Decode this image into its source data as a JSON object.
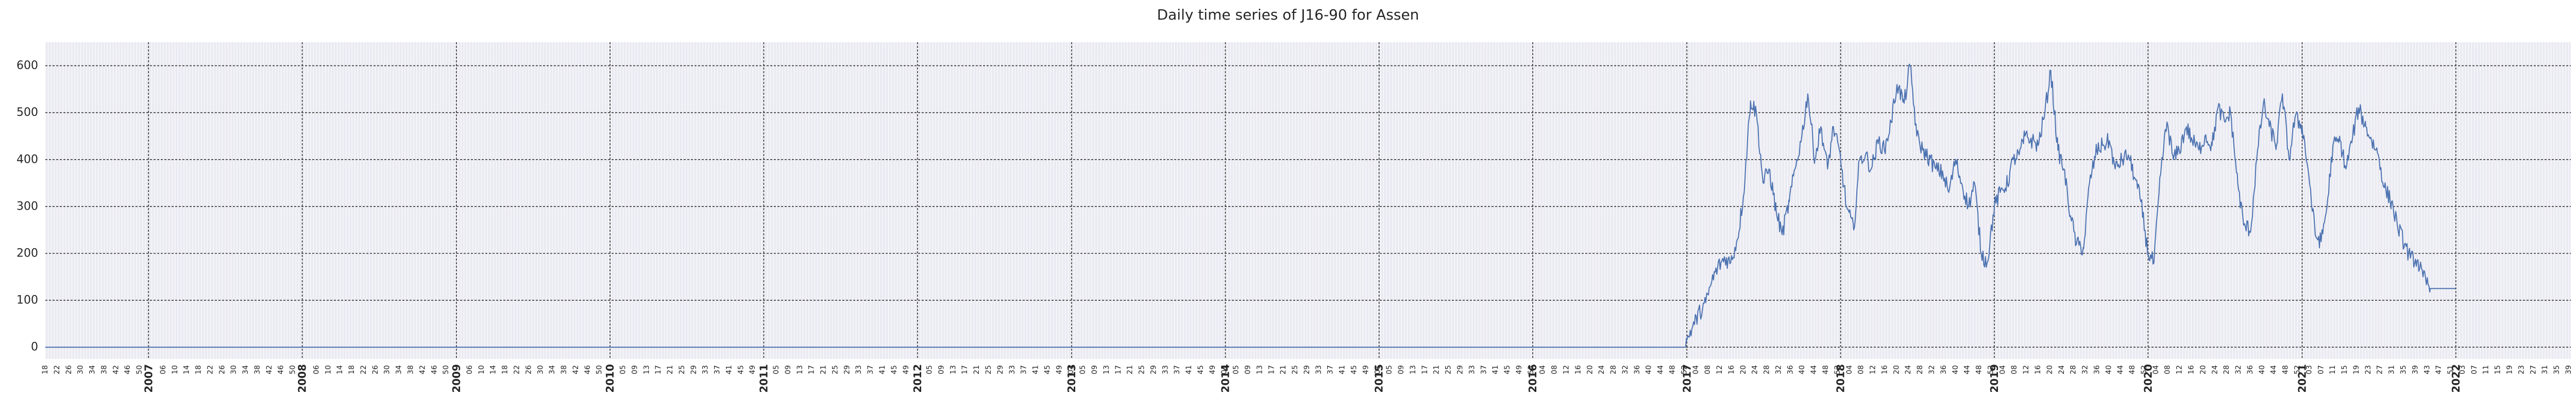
{
  "chart_data": {
    "type": "line",
    "title": "Daily time series of J16-90 for Assen",
    "xlabel": "",
    "ylabel": "",
    "x_range": [
      "2006-05-01",
      "2022-10-01"
    ],
    "ylim": [
      -25,
      650
    ],
    "yticks": [
      0,
      100,
      200,
      300,
      400,
      500,
      600
    ],
    "year_ticks": [
      "2007",
      "2008",
      "2009",
      "2010",
      "2011",
      "2012",
      "2013",
      "2014",
      "2015",
      "2016",
      "2017",
      "2018",
      "2019",
      "2020",
      "2021",
      "2022"
    ],
    "week_ticks": [
      "04",
      "09",
      "13",
      "17",
      "22",
      "26",
      "31",
      "35",
      "39",
      "44",
      "48"
    ],
    "grid": true,
    "legend": "none",
    "colors": {
      "line": "#4c72b0",
      "background": "#eaeaf2",
      "major_grid": "#333333",
      "minor_grid": "#ffffff"
    },
    "series": [
      {
        "x": [
          "2006-05-01",
          "2016-12-25",
          "2017-01-01",
          "2017-01-15",
          "2017-02-01",
          "2017-02-15",
          "2017-03-01",
          "2017-03-15",
          "2017-04-01",
          "2017-04-15",
          "2017-05-01",
          "2017-05-15",
          "2017-06-01",
          "2017-06-15",
          "2017-07-01",
          "2017-07-15",
          "2017-08-01",
          "2017-08-15",
          "2017-09-01",
          "2017-09-15",
          "2017-10-01",
          "2017-10-15",
          "2017-11-01",
          "2017-11-15",
          "2017-12-01",
          "2017-12-15",
          "2018-01-01",
          "2018-01-15",
          "2018-02-01",
          "2018-02-15",
          "2018-03-01",
          "2018-03-15",
          "2018-04-01",
          "2018-04-15",
          "2018-05-01",
          "2018-05-15",
          "2018-06-01",
          "2018-06-15",
          "2018-07-01",
          "2018-07-15",
          "2018-08-01",
          "2018-08-15",
          "2018-09-01",
          "2018-09-15",
          "2018-10-01",
          "2018-10-15",
          "2018-11-01",
          "2018-11-15",
          "2018-12-01",
          "2018-12-15",
          "2019-01-01",
          "2019-01-15",
          "2019-02-01",
          "2019-02-15",
          "2019-03-01",
          "2019-03-15",
          "2019-04-01",
          "2019-04-15",
          "2019-05-01",
          "2019-05-15",
          "2019-06-01",
          "2019-06-15",
          "2019-07-01",
          "2019-07-15",
          "2019-08-01",
          "2019-08-15",
          "2019-09-01",
          "2019-09-15",
          "2019-10-01",
          "2019-10-15",
          "2019-11-01",
          "2019-11-15",
          "2019-12-01",
          "2019-12-15",
          "2020-01-01",
          "2020-01-15",
          "2020-02-01",
          "2020-02-15",
          "2020-03-01",
          "2020-03-15",
          "2020-04-01",
          "2020-04-15",
          "2020-05-01",
          "2020-05-15",
          "2020-06-01",
          "2020-06-15",
          "2020-07-01",
          "2020-07-15",
          "2020-08-01",
          "2020-08-15",
          "2020-09-01",
          "2020-09-15",
          "2020-10-01",
          "2020-10-15",
          "2020-11-01",
          "2020-11-15",
          "2020-12-01",
          "2020-12-15",
          "2021-01-01",
          "2021-01-15",
          "2021-02-01",
          "2021-02-15",
          "2021-03-01",
          "2021-03-15",
          "2021-04-01",
          "2021-04-15",
          "2021-05-01",
          "2021-05-15",
          "2021-06-01",
          "2021-06-15",
          "2021-07-01",
          "2021-07-15",
          "2021-08-01",
          "2021-08-15",
          "2021-09-01",
          "2021-09-15",
          "2021-10-01",
          "2021-10-15",
          "2021-11-01",
          "2021-12-01",
          "2021-12-31"
        ],
        "y": [
          0,
          0,
          15,
          45,
          75,
          95,
          140,
          170,
          190,
          180,
          230,
          320,
          525,
          500,
          350,
          380,
          290,
          240,
          310,
          380,
          450,
          540,
          400,
          470,
          380,
          470,
          400,
          300,
          250,
          400,
          410,
          380,
          440,
          420,
          480,
          560,
          520,
          600,
          450,
          420,
          400,
          380,
          370,
          330,
          400,
          350,
          300,
          350,
          200,
          180,
          300,
          330,
          350,
          400,
          410,
          450,
          440,
          430,
          500,
          590,
          420,
          380,
          280,
          220,
          210,
          350,
          420,
          430,
          440,
          380,
          400,
          410,
          360,
          310,
          200,
          180,
          380,
          480,
          400,
          420,
          470,
          440,
          420,
          450,
          430,
          510,
          480,
          500,
          350,
          260,
          250,
          400,
          520,
          470,
          430,
          540,
          400,
          490,
          470,
          380,
          240,
          225,
          300,
          430,
          440,
          380,
          450,
          510,
          470,
          440,
          410,
          340,
          310,
          260,
          220,
          190,
          185,
          150,
          125,
          125,
          125
        ]
      }
    ]
  }
}
